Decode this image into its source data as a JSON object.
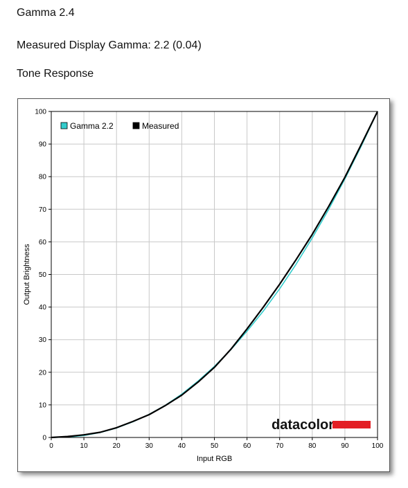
{
  "headings": {
    "title": "Gamma 2.4",
    "measured": "Measured Display Gamma: 2.2 (0.04)",
    "section": "Tone Response"
  },
  "branding": {
    "logo_text": "datacolor",
    "logo_bar_color": "#e31e24"
  },
  "chart_data": {
    "type": "line",
    "xlabel": "Input RGB",
    "ylabel": "Output Brightness",
    "xlim": [
      0,
      100
    ],
    "ylim": [
      0,
      100
    ],
    "xticks": [
      0,
      10,
      20,
      30,
      40,
      50,
      60,
      70,
      80,
      90,
      100
    ],
    "yticks": [
      0,
      10,
      20,
      30,
      40,
      50,
      60,
      70,
      80,
      90,
      100
    ],
    "grid": true,
    "legend_position": "top-left",
    "series": [
      {
        "name": "Gamma 2.2",
        "color": "#33cccc",
        "x": [
          0,
          5,
          10,
          15,
          20,
          25,
          30,
          35,
          40,
          45,
          50,
          55,
          60,
          65,
          70,
          75,
          80,
          85,
          90,
          95,
          100
        ],
        "y": [
          0,
          0.1,
          0.6,
          1.5,
          2.9,
          4.8,
          7.1,
          9.9,
          13.3,
          17.3,
          21.8,
          26.9,
          32.6,
          38.8,
          45.6,
          53.1,
          61.2,
          69.9,
          79.3,
          89.3,
          100
        ]
      },
      {
        "name": "Measured",
        "color": "#000000",
        "x": [
          0,
          5,
          10,
          15,
          20,
          25,
          30,
          35,
          40,
          45,
          50,
          55,
          60,
          65,
          70,
          75,
          80,
          85,
          90,
          95,
          100
        ],
        "y": [
          0,
          0.3,
          0.8,
          1.6,
          3.0,
          4.9,
          7.0,
          9.8,
          13.0,
          17.0,
          21.5,
          27.0,
          33.3,
          40.0,
          47.0,
          54.5,
          62.3,
          70.8,
          79.8,
          89.8,
          100
        ]
      }
    ]
  }
}
